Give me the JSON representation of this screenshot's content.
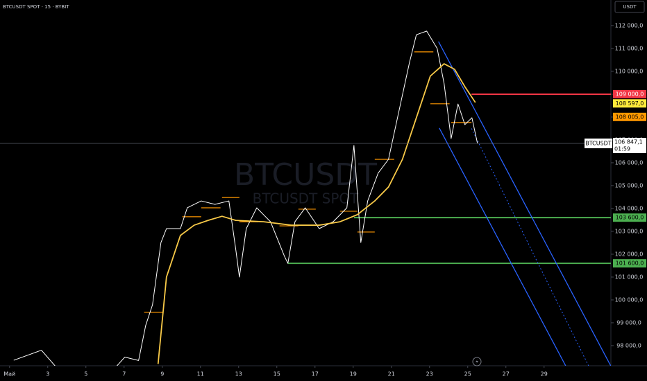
{
  "chart_data": {
    "type": "line",
    "title": "BTCUSDT SPOT · 15 · BYBIT",
    "currency": "USDT",
    "watermark": {
      "symbol": "BTCUSDT",
      "market": "BTCUSDT SPOT"
    },
    "xlim": [
      0.5,
      32.5
    ],
    "ylim": [
      97120,
      113120
    ],
    "xticks": [
      {
        "value": 1,
        "label": "Май"
      },
      3,
      5,
      7,
      9,
      11,
      13,
      15,
      17,
      19,
      21,
      23,
      25,
      27,
      29
    ],
    "yticks": [
      {
        "value": 98000,
        "label": "98 000,0"
      },
      {
        "value": 99000,
        "label": "99 000,0"
      },
      {
        "value": 100000,
        "label": "100 000,0"
      },
      {
        "value": 101000,
        "label": "101 000,0"
      },
      {
        "value": 102000,
        "label": "102 000,0"
      },
      {
        "value": 103000,
        "label": "103 000,0"
      },
      {
        "value": 104000,
        "label": "104 000,0"
      },
      {
        "value": 105000,
        "label": "105 000,0"
      },
      {
        "value": 106000,
        "label": "106 000,0"
      },
      {
        "value": 107000,
        "label": "107 000,0"
      },
      {
        "value": 108000,
        "label": "108 000,0"
      },
      {
        "value": 109000,
        "label": "109 000,0"
      },
      {
        "value": 110000,
        "label": "110 000,0"
      },
      {
        "value": 111000,
        "label": "111 000,0"
      },
      {
        "value": 112000,
        "label": "112 000,0"
      }
    ],
    "series": [
      {
        "name": "BTCUSDT",
        "color": "#ffffff",
        "x": [
          1.22,
          2.67,
          3.4,
          4,
          6.5,
          7.04,
          7.76,
          8.13,
          8.49,
          8.93,
          9.22,
          9.95,
          10.31,
          11.04,
          11.76,
          12.49,
          12.85,
          13.04,
          13.4,
          13.95,
          14.67,
          15.4,
          15.58,
          15.95,
          16.49,
          17.22,
          17.95,
          18.67,
          19.04,
          19.4,
          19.76,
          20.31,
          20.85,
          21.4,
          21.95,
          22.31,
          22.85,
          23.4,
          23.76,
          24.13,
          24.49,
          24.85,
          25.22,
          25.51
        ],
        "values": [
          97360,
          97800,
          97100,
          97000,
          97000,
          97500,
          97350,
          98880,
          99790,
          102510,
          103120,
          103120,
          104030,
          104330,
          104180,
          104330,
          102210,
          101000,
          103120,
          104030,
          103420,
          101910,
          101600,
          103420,
          104030,
          103120,
          103420,
          104030,
          106760,
          102510,
          104330,
          105550,
          106150,
          108270,
          110390,
          111600,
          111760,
          111000,
          109480,
          107060,
          108570,
          107670,
          107970,
          106847.1
        ]
      },
      {
        "name": "MA",
        "color": "#f7c948",
        "x": [
          8.78,
          9.22,
          9.95,
          10.67,
          11.4,
          12.13,
          12.85,
          14.31,
          15.76,
          17.22,
          18.31,
          19.22,
          20.13,
          20.85,
          21.58,
          22.31,
          23.04,
          23.76,
          24.31,
          24.85,
          25.4
        ],
        "values": [
          97200,
          101000,
          102820,
          103270,
          103480,
          103660,
          103480,
          103420,
          103270,
          103270,
          103420,
          103730,
          104330,
          104940,
          106150,
          107970,
          109790,
          110330,
          110090,
          109330,
          108640
        ]
      }
    ],
    "current_price": {
      "value": 106847.1,
      "label": "106 847,1",
      "symbol": "BTCUSDT",
      "countdown": "01:59"
    },
    "levels": [
      {
        "value": 109000,
        "label": "109 000,0",
        "color": "#f23645",
        "start": 25.2
      },
      {
        "value": 108597,
        "label": "108 597,0",
        "color": "#ffeb3b"
      },
      {
        "value": 108005,
        "label": "108 005,0",
        "color": "#ff9800"
      },
      {
        "value": 103600,
        "label": "103 600,0",
        "color": "#4caf50",
        "start": 19.04
      },
      {
        "value": 101600,
        "label": "101 600,0",
        "color": "#4caf50",
        "start": 15.58
      }
    ],
    "session_levels": [
      {
        "x": [
          22.2,
          23.2
        ],
        "value": 110850
      },
      {
        "x": [
          23.04,
          24.05
        ],
        "value": 108580
      },
      {
        "x": [
          24.13,
          25.2
        ],
        "value": 107760
      },
      {
        "x": [
          20.13,
          21.15
        ],
        "value": 106150
      },
      {
        "x": [
          18.31,
          19.22
        ],
        "value": 103880
      },
      {
        "x": [
          16.13,
          17.04
        ],
        "value": 103970
      },
      {
        "x": [
          15.14,
          16.13
        ],
        "value": 103240
      },
      {
        "x": [
          13.04,
          14.02
        ],
        "value": 103420
      },
      {
        "x": [
          12.13,
          13.04
        ],
        "value": 104480
      },
      {
        "x": [
          11.04,
          12.05
        ],
        "value": 104030
      },
      {
        "x": [
          10.05,
          11.04
        ],
        "value": 103640
      },
      {
        "x": [
          8.05,
          9.04
        ],
        "value": 99460
      },
      {
        "x": [
          19.22,
          20.13
        ],
        "value": 102970
      }
    ],
    "channel": [
      {
        "color": "#2962ff",
        "style": "solid",
        "x": [
          23.47,
          32.49
        ],
        "values": [
          111300,
          97120
        ]
      },
      {
        "color": "#2962ff",
        "style": "solid",
        "x": [
          23.51,
          30.13
        ],
        "values": [
          107520,
          97120
        ]
      },
      {
        "color": "#2962ff",
        "style": "dotted",
        "x": [
          25.2,
          31.33
        ],
        "values": [
          107500,
          97120
        ]
      }
    ]
  }
}
